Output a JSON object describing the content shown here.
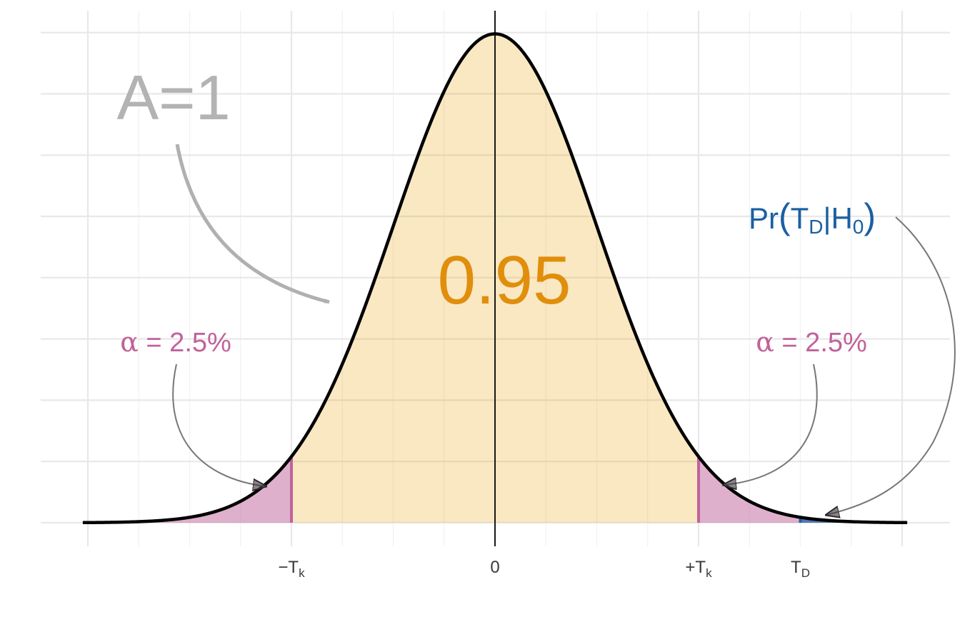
{
  "chart_data": {
    "type": "area",
    "title": "",
    "xlabel": "",
    "ylabel": "",
    "distribution": "standard normal density under H0",
    "xlim": [
      -4.1,
      4.4
    ],
    "ylim": [
      0,
      0.42
    ],
    "grid": true,
    "x_ticks": [
      {
        "x": -2,
        "label": "−T",
        "sub": "k"
      },
      {
        "x": 0,
        "label": "0",
        "sub": ""
      },
      {
        "x": 2,
        "label": "+T",
        "sub": "k"
      },
      {
        "x": 3,
        "label": "T",
        "sub": "D"
      }
    ],
    "critical_value": 2,
    "test_statistic": 3,
    "regions": [
      {
        "from": -4,
        "to": -2,
        "color": "#c0629a",
        "probability": 0.025
      },
      {
        "from": -2,
        "to": 2,
        "color": "#e69f00",
        "probability": 0.95
      },
      {
        "from": 2,
        "to": 4,
        "color": "#c0629a",
        "probability": 0.025
      },
      {
        "from": 3,
        "to": 4,
        "color": "#1f5fa8"
      }
    ],
    "annotations": {
      "total_area": {
        "text": "A=1",
        "color": "#b3b3b3"
      },
      "center_area": {
        "text": "0.95",
        "color": "#e08e0b"
      },
      "alpha_left": {
        "greek": "α",
        "rest": " = 2.5%",
        "color": "#c0629a"
      },
      "alpha_right": {
        "greek": "α",
        "rest": " = 2.5%",
        "color": "#c0629a"
      },
      "p_value": {
        "pre": "Pr",
        "open": "(",
        "t": "T",
        "t_sub": "D",
        "bar": "|H",
        "h_sub": "0",
        "close": ")",
        "color": "#1a5fa3"
      }
    }
  }
}
